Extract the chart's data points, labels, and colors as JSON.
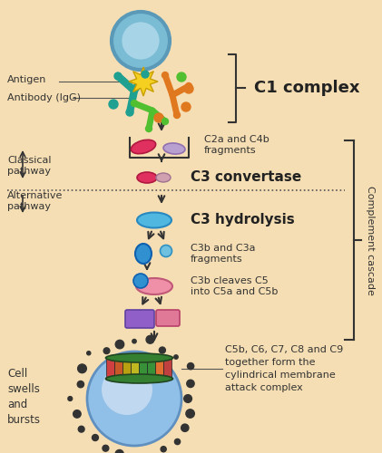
{
  "bg_color": "#f5deb3",
  "elements": {
    "antigen_label": "Antigen",
    "antibody_label": "Antibody (IgG)",
    "c1_label": "C1 complex",
    "c2a_c4b_label": "C2a and C4b\nfragments",
    "c3_conv_label": "C3 convertase",
    "classical_label": "Classical\npathway",
    "alt_label": "Alternative\npathway",
    "c3_hyd_label": "C3 hydrolysis",
    "c3b_c3a_label": "C3b and C3a\nfragments",
    "c3b_cleaves_label": "C3b cleaves C5\ninto C5a and C5b",
    "cell_label": "Cell\nswells\nand\nbursts",
    "mac_label": "C5b, C6, C7, C8 and C9\ntogether form the\ncylindrical membrane\nattack complex",
    "complement_cascade_label": "Complement cascade"
  }
}
